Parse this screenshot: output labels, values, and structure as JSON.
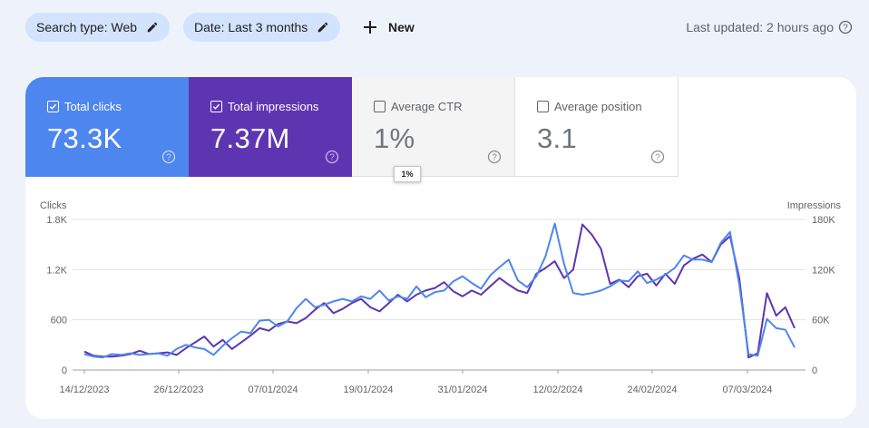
{
  "filters": {
    "search_type": "Search type: Web",
    "date": "Date: Last 3 months",
    "new_label": "New"
  },
  "last_updated": "Last updated: 2 hours ago",
  "metrics": [
    {
      "label": "Total clicks",
      "value": "73.3K",
      "checked": true
    },
    {
      "label": "Total impressions",
      "value": "7.37M",
      "checked": true
    },
    {
      "label": "Average CTR",
      "value": "1%",
      "checked": false
    },
    {
      "label": "Average position",
      "value": "3.1",
      "checked": false
    }
  ],
  "tooltip": "1%",
  "colors": {
    "clicks": "#4e86ef",
    "impressions": "#5e35b1"
  },
  "chart_data": {
    "type": "line",
    "left_axis_title": "Clicks",
    "right_axis_title": "Impressions",
    "y_left_ticks": [
      "0",
      "600",
      "1.2K",
      "1.8K"
    ],
    "y_right_ticks": [
      "0",
      "60K",
      "120K",
      "180K"
    ],
    "y_left_range": [
      0,
      1800
    ],
    "y_right_range": [
      0,
      180000
    ],
    "x_tick_labels": [
      "14/12/2023",
      "26/12/2023",
      "07/01/2024",
      "19/01/2024",
      "31/01/2024",
      "12/02/2024",
      "24/02/2024",
      "07/03/2024"
    ],
    "series": [
      {
        "name": "Clicks",
        "axis": "left",
        "color": "#4e86ef",
        "values": [
          190,
          160,
          150,
          190,
          180,
          200,
          180,
          190,
          200,
          170,
          250,
          300,
          270,
          250,
          180,
          290,
          380,
          460,
          440,
          590,
          600,
          520,
          580,
          740,
          850,
          750,
          780,
          820,
          850,
          820,
          880,
          850,
          950,
          830,
          880,
          850,
          1000,
          870,
          930,
          950,
          1060,
          1120,
          1040,
          970,
          1130,
          1230,
          1320,
          1070,
          990,
          1120,
          1360,
          1750,
          1270,
          920,
          900,
          920,
          950,
          1000,
          1070,
          1060,
          1180,
          1040,
          1080,
          1140,
          1220,
          1370,
          1320,
          1320,
          1290,
          1520,
          1650,
          1020,
          190,
          170,
          610,
          500,
          480,
          270
        ]
      },
      {
        "name": "Impressions",
        "axis": "right",
        "color": "#5e35b1",
        "values": [
          22000,
          17000,
          16000,
          16000,
          17000,
          19000,
          23000,
          19000,
          20000,
          21000,
          18000,
          26000,
          33000,
          40000,
          28000,
          36000,
          25000,
          33000,
          41000,
          50000,
          47000,
          55000,
          58000,
          56000,
          62000,
          72000,
          80000,
          68000,
          73000,
          80000,
          85000,
          75000,
          70000,
          80000,
          90000,
          82000,
          90000,
          95000,
          98000,
          105000,
          94000,
          88000,
          95000,
          90000,
          100000,
          110000,
          102000,
          95000,
          92000,
          115000,
          122000,
          130000,
          110000,
          120000,
          174000,
          162000,
          145000,
          103000,
          108000,
          99000,
          112000,
          115000,
          101000,
          115000,
          103000,
          125000,
          133000,
          138000,
          129000,
          150000,
          160000,
          110000,
          15000,
          20000,
          92000,
          65000,
          75000,
          50000
        ]
      }
    ]
  }
}
